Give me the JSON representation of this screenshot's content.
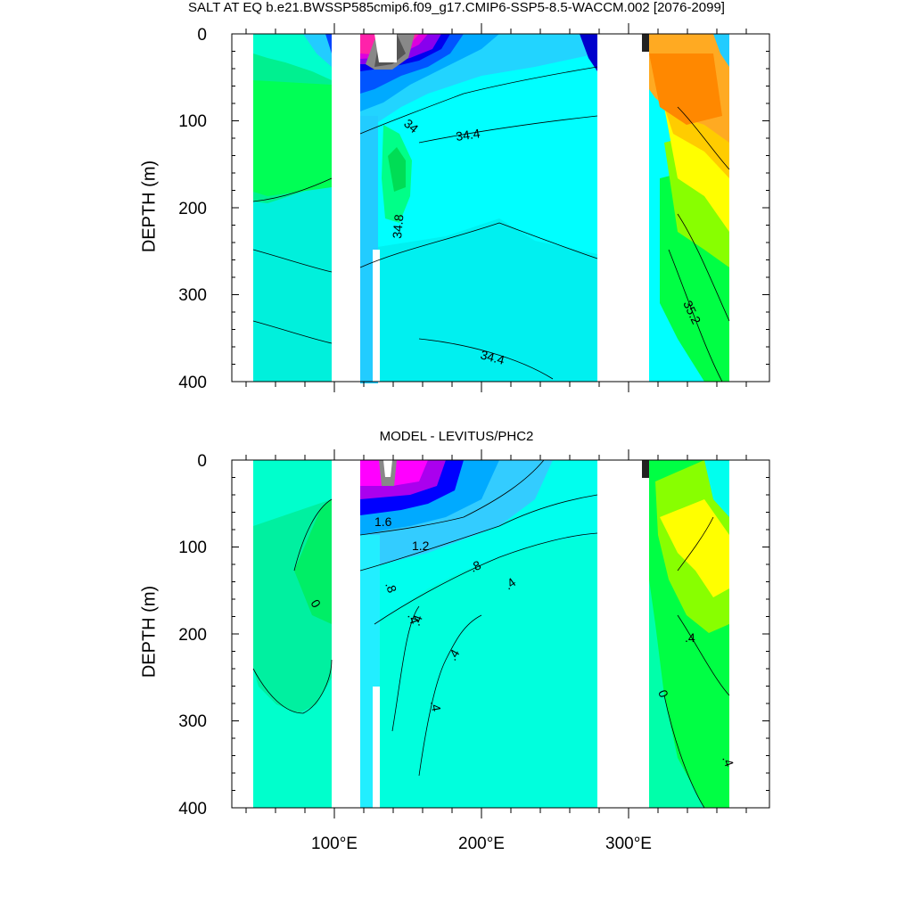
{
  "chart_data": [
    {
      "type": "heatmap",
      "title": "SALT AT EQ b.e21.BWSSP585cmip6.f09_g17.CMIP6-SSP5-8.5-WACCM.002 [2076-2099]",
      "ylabel": "DEPTH (m)",
      "xlabel": "",
      "x_ticks": [
        "100°E",
        "200°E",
        "300°E"
      ],
      "y_ticks": [
        "0",
        "100",
        "200",
        "300",
        "400"
      ],
      "xlim": [
        30,
        390
      ],
      "ylim": [
        400,
        0
      ],
      "contour_labels": [
        "34",
        "34.4",
        "34.8",
        "35.2",
        "34.4"
      ],
      "colors": [
        "#00ffff",
        "#33ccff",
        "#00ff44",
        "#ff8800",
        "#ffff00",
        "#ff00ff",
        "#0000ff",
        "#888888"
      ]
    },
    {
      "type": "heatmap",
      "title": "MODEL - LEVITUS/PHC2",
      "ylabel": "DEPTH (m)",
      "xlabel": "",
      "x_ticks": [
        "100°E",
        "200°E",
        "300°E"
      ],
      "y_ticks": [
        "0",
        "100",
        "200",
        "300",
        "400"
      ],
      "xlim": [
        30,
        390
      ],
      "ylim": [
        400,
        0
      ],
      "contour_labels": [
        "1.6",
        "1.2",
        ".8",
        ".8",
        ".4",
        ".4",
        ".4",
        ".4",
        ".4",
        "0",
        ".4",
        "0",
        ".4"
      ],
      "colors": [
        "#00ffcc",
        "#00ff88",
        "#ffff00",
        "#ff00ff",
        "#0000ff",
        "#888888"
      ]
    }
  ]
}
